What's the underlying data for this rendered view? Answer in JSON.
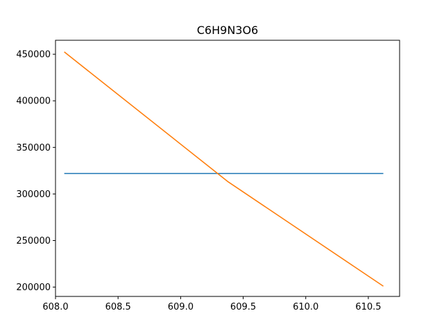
{
  "chart_data": {
    "type": "line",
    "title": "C6H9N3O6",
    "xlabel": "",
    "ylabel": "",
    "xlim": [
      608.0,
      610.75
    ],
    "ylim": [
      190000,
      465000
    ],
    "grid": false,
    "x_ticks": [
      608.0,
      608.5,
      609.0,
      609.5,
      610.0,
      610.5
    ],
    "x_tick_labels": [
      "608.0",
      "608.5",
      "609.0",
      "609.5",
      "610.0",
      "610.5"
    ],
    "y_ticks": [
      200000,
      250000,
      300000,
      350000,
      400000,
      450000
    ],
    "y_tick_labels": [
      "200000",
      "250000",
      "300000",
      "350000",
      "400000",
      "450000"
    ],
    "series": [
      {
        "color": "#1f77b4",
        "x": [
          608.07,
          610.62
        ],
        "y": [
          322000,
          322000
        ]
      },
      {
        "color": "#ff7f0e",
        "x": [
          608.07,
          609.38,
          610.62
        ],
        "y": [
          452500,
          313000,
          201000
        ]
      }
    ]
  }
}
